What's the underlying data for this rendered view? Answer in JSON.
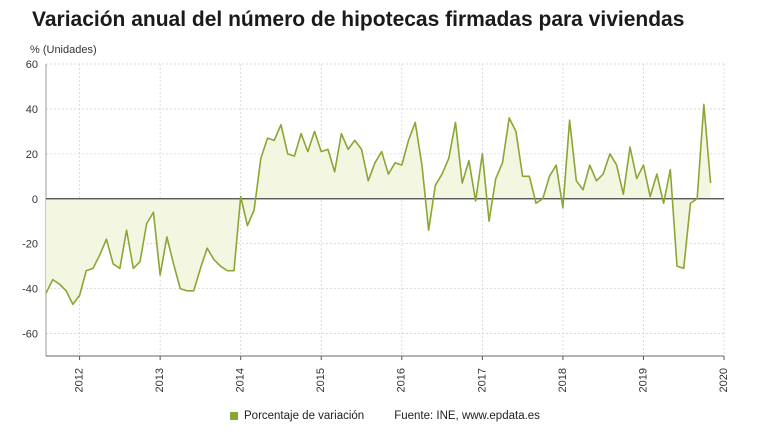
{
  "title": "Variación anual del número de hipotecas firmadas para viviendas",
  "unit_label": "% (Unidades)",
  "legend_label": "Porcentaje de variación",
  "source": "Fuente: INE, www.epdata.es",
  "colors": {
    "line": "#8aa634",
    "fill": "#f3f7e2",
    "grid": "#d4d4d4",
    "zero": "#444444"
  },
  "chart_data": {
    "type": "area",
    "ylabel": "% (Unidades)",
    "ylim": [
      -70,
      60
    ],
    "yticks": [
      60,
      40,
      20,
      0,
      -20,
      -40,
      -60
    ],
    "xlim": [
      2011.583,
      2020.0
    ],
    "xticks": [
      {
        "value": 2012.0,
        "label": "2012"
      },
      {
        "value": 2013.0,
        "label": "2013"
      },
      {
        "value": 2014.0,
        "label": "2014"
      },
      {
        "value": 2015.0,
        "label": "2015"
      },
      {
        "value": 2016.0,
        "label": "2016"
      },
      {
        "value": 2017.0,
        "label": "2017"
      },
      {
        "value": 2018.0,
        "label": "2018"
      },
      {
        "value": 2019.0,
        "label": "2019"
      },
      {
        "value": 2020.0,
        "label": "2020"
      }
    ],
    "grid": true,
    "legend_position": "bottom",
    "series": [
      {
        "name": "Porcentaje de variación",
        "start": "2011-08",
        "values": [
          -42,
          -36,
          -38,
          -41,
          -47,
          -43,
          -32,
          -31,
          -25,
          -18,
          -29,
          -31,
          -14,
          -31,
          -28,
          -11,
          -6,
          -34,
          -17,
          -29,
          -40,
          -41,
          -41,
          -31,
          -22,
          -27,
          -30,
          -32,
          -32,
          1,
          -12,
          -5,
          18,
          27,
          26,
          33,
          20,
          19,
          29,
          21,
          30,
          21,
          22,
          12,
          29,
          22,
          26,
          22,
          8,
          16,
          21,
          11,
          16,
          15,
          26,
          34,
          15,
          -14,
          6,
          11,
          18,
          34,
          7,
          17,
          -1,
          20,
          -10,
          9,
          16,
          36,
          30,
          10,
          10,
          -2,
          0,
          10,
          15,
          -4,
          35,
          8,
          4,
          15,
          8,
          11,
          20,
          15,
          2,
          23,
          9,
          15,
          1,
          11,
          -2,
          13,
          -30,
          -31,
          -2,
          0,
          42,
          7
        ]
      }
    ]
  }
}
